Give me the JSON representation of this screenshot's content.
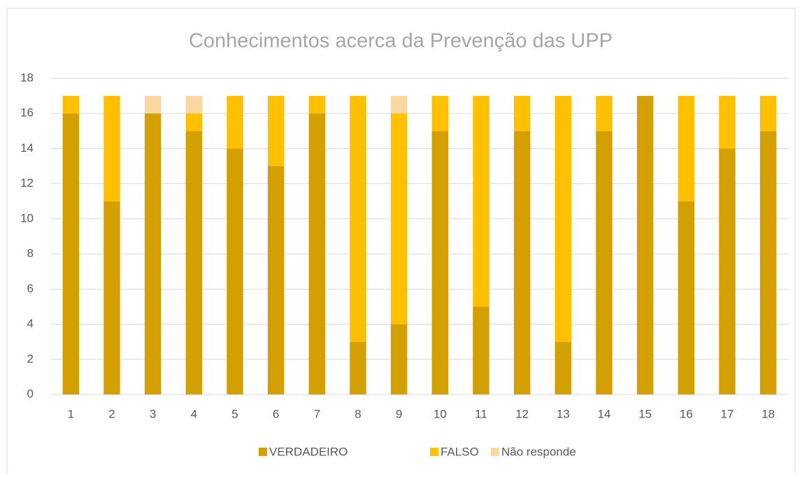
{
  "chart_data": {
    "type": "stacked_bar",
    "title": "Conhecimentos acerca da Prevenção das UPP",
    "categories": [
      "1",
      "2",
      "3",
      "4",
      "5",
      "6",
      "7",
      "8",
      "9",
      "10",
      "11",
      "12",
      "13",
      "14",
      "15",
      "16",
      "17",
      "18"
    ],
    "series": [
      {
        "name": "VERDADEIRO",
        "color": "#D4A000",
        "values": [
          16,
          11,
          16,
          15,
          14,
          13,
          16,
          3,
          4,
          15,
          5,
          15,
          3,
          15,
          17,
          11,
          14,
          15
        ]
      },
      {
        "name": "FALSO",
        "color": "#FFC000",
        "values": [
          1,
          6,
          0,
          1,
          3,
          4,
          1,
          14,
          12,
          2,
          12,
          2,
          14,
          2,
          0,
          6,
          3,
          2
        ]
      },
      {
        "name": "Não responde",
        "color": "#FBD8A0",
        "values": [
          0,
          0,
          1,
          1,
          0,
          0,
          0,
          0,
          1,
          0,
          0,
          0,
          0,
          0,
          0,
          0,
          0,
          0
        ]
      }
    ],
    "ylim": [
      0,
      18
    ],
    "yticks": [
      0,
      2,
      4,
      6,
      8,
      10,
      12,
      14,
      16,
      18
    ],
    "grid": true,
    "legend": "bottom"
  }
}
